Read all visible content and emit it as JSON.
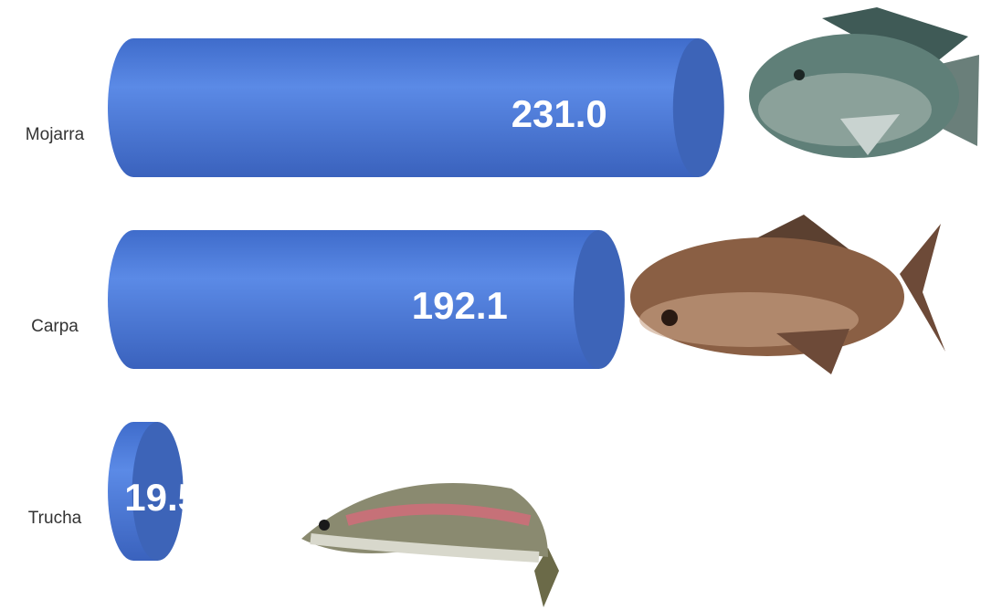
{
  "chart_data": {
    "type": "cylinder-bar",
    "categories": [
      "Mojarra",
      "Carpa",
      "Trucha"
    ],
    "values": [
      231.0,
      192.1,
      19.5
    ],
    "value_labels": [
      "231.0",
      "192.1",
      "19.5"
    ],
    "color": "#4a7bdc"
  }
}
